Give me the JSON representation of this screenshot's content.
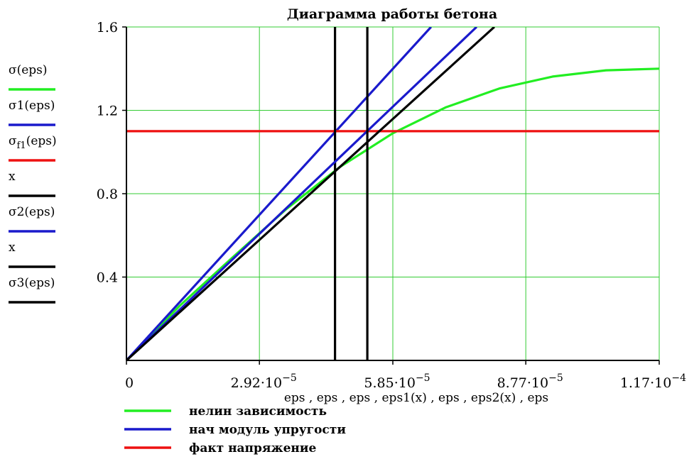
{
  "chart_data": {
    "type": "line",
    "title": "Диаграмма работы бетона",
    "xlabel": "eps , eps , eps , eps1(x) , eps , eps2(x) , eps",
    "ylabel": "",
    "xlim": [
      0,
      0.000117
    ],
    "ylim": [
      0,
      1.6
    ],
    "grid": true,
    "x_ticks": [
      {
        "value": 0,
        "mantissa": "0",
        "exponent": ""
      },
      {
        "value": 2.92e-05,
        "mantissa": "2.92·10",
        "exponent": "−5"
      },
      {
        "value": 5.85e-05,
        "mantissa": "5.85·10",
        "exponent": "−5"
      },
      {
        "value": 8.77e-05,
        "mantissa": "8.77·10",
        "exponent": "−5"
      },
      {
        "value": 0.000117,
        "mantissa": "1.17·10",
        "exponent": "−4"
      }
    ],
    "y_ticks": [
      {
        "value": 0.4,
        "label": "0.4"
      },
      {
        "value": 0.8,
        "label": "0.8"
      },
      {
        "value": 1.2,
        "label": "1.2"
      },
      {
        "value": 1.6,
        "label": "1.6"
      }
    ],
    "series": [
      {
        "name": "σ(eps)",
        "color": "#22ee22",
        "x": [
          0,
          1.17e-05,
          2.34e-05,
          3.51e-05,
          4.68e-05,
          5.85e-05,
          7.02e-05,
          8.19e-05,
          9.36e-05,
          0.0001053,
          0.000117
        ],
        "y": [
          0,
          0.262,
          0.496,
          0.726,
          0.927,
          1.09,
          1.215,
          1.305,
          1.362,
          1.392,
          1.4
        ]
      },
      {
        "name": "σ1(eps)",
        "color": "#1a1acc",
        "x": [
          0,
          6.69e-05
        ],
        "y": [
          0,
          1.6
        ]
      },
      {
        "name": "σf1(eps)",
        "color": "#ee1111",
        "x": [
          0,
          0.000117
        ],
        "y": [
          1.1,
          1.1
        ]
      },
      {
        "name": "x",
        "color": "#000000",
        "x": [
          4.58e-05,
          4.58e-05
        ],
        "y": [
          0,
          1.6
        ]
      },
      {
        "name": "σ2(eps)",
        "color": "#1a1acc",
        "x": [
          0,
          7.69e-05
        ],
        "y": [
          0,
          1.6
        ]
      },
      {
        "name": "x",
        "color": "#000000",
        "x": [
          5.29e-05,
          5.29e-05
        ],
        "y": [
          0,
          1.6
        ]
      },
      {
        "name": "σ3(eps)",
        "color": "#000000",
        "x": [
          0,
          8.08e-05
        ],
        "y": [
          0,
          1.6
        ]
      }
    ],
    "side_legend": [
      {
        "main": "σ",
        "sub": "",
        "rest": "(eps)",
        "color": "#22ee22"
      },
      {
        "main": "σ1",
        "sub": "",
        "rest": "(eps)",
        "color": "#1a1acc"
      },
      {
        "main": "σ",
        "sub": "f1",
        "rest": "(eps)",
        "color": "#ee1111"
      },
      {
        "main": "x",
        "sub": "",
        "rest": "",
        "color": "#000000"
      },
      {
        "main": "σ2",
        "sub": "",
        "rest": "(eps)",
        "color": "#1a1acc"
      },
      {
        "main": "x",
        "sub": "",
        "rest": "",
        "color": "#000000"
      },
      {
        "main": "σ3",
        "sub": "",
        "rest": "(eps)",
        "color": "#000000"
      }
    ],
    "bottom_legend": [
      {
        "label": "нелин зависимость",
        "color": "#22ee22"
      },
      {
        "label": "нач модуль упругости",
        "color": "#1a1acc"
      },
      {
        "label": "факт напряжение",
        "color": "#ee1111"
      }
    ],
    "grid_color": "#33cc33"
  }
}
